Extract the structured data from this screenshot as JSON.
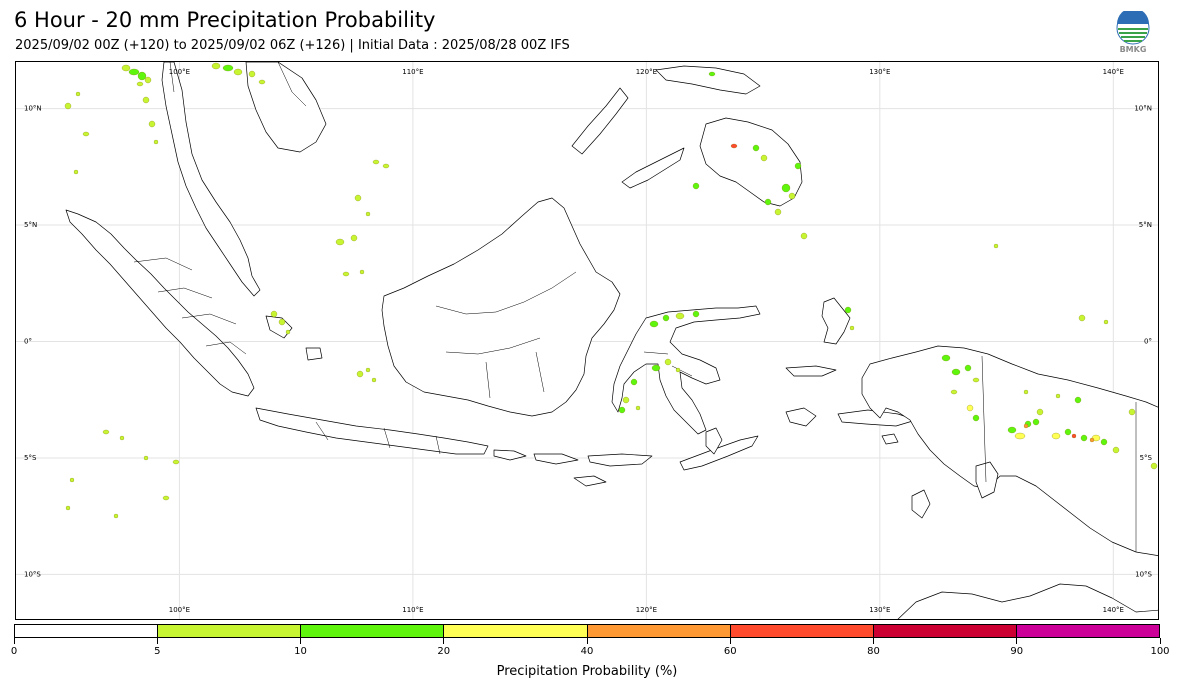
{
  "header": {
    "title": "6 Hour - 20 mm Precipitation Probability",
    "subtitle": "2025/09/02 00Z (+120) to 2025/09/02 06Z (+126) | Initial Data : 2025/08/28 00Z IFS"
  },
  "logo": {
    "text": "BMKG",
    "icon": "bmkg-globe-logo"
  },
  "map": {
    "lon_range": [
      93,
      142
    ],
    "lat_range": [
      -12,
      12
    ],
    "lon_labels": [
      {
        "lon": 100,
        "text": "100°E"
      },
      {
        "lon": 110,
        "text": "110°E"
      },
      {
        "lon": 120,
        "text": "120°E"
      },
      {
        "lon": 130,
        "text": "130°E"
      },
      {
        "lon": 140,
        "text": "140°E"
      }
    ],
    "lat_labels": [
      {
        "lat": 10,
        "text": "10°N"
      },
      {
        "lat": 5,
        "text": "5°N"
      },
      {
        "lat": 0,
        "text": "0°"
      },
      {
        "lat": -5,
        "text": "5°S"
      },
      {
        "lat": -10,
        "text": "10°S"
      }
    ],
    "gridline_color": "#e3e3e3",
    "coastline_color": "#000000"
  },
  "colorbar": {
    "label": "Precipitation Probability (%)",
    "bins": [
      {
        "from": 0,
        "to": 5,
        "color": "#ffffff"
      },
      {
        "from": 5,
        "to": 10,
        "color": "#c8f531"
      },
      {
        "from": 10,
        "to": 20,
        "color": "#5ff50c"
      },
      {
        "from": 20,
        "to": 40,
        "color": "#ffff55"
      },
      {
        "from": 40,
        "to": 60,
        "color": "#ff9933"
      },
      {
        "from": 60,
        "to": 80,
        "color": "#ff4a2e"
      },
      {
        "from": 80,
        "to": 90,
        "color": "#cc0033"
      },
      {
        "from": 90,
        "to": 100,
        "color": "#cc0099"
      }
    ],
    "ticks": [
      "0",
      "5",
      "10",
      "20",
      "40",
      "60",
      "80",
      "90",
      "100"
    ]
  }
}
